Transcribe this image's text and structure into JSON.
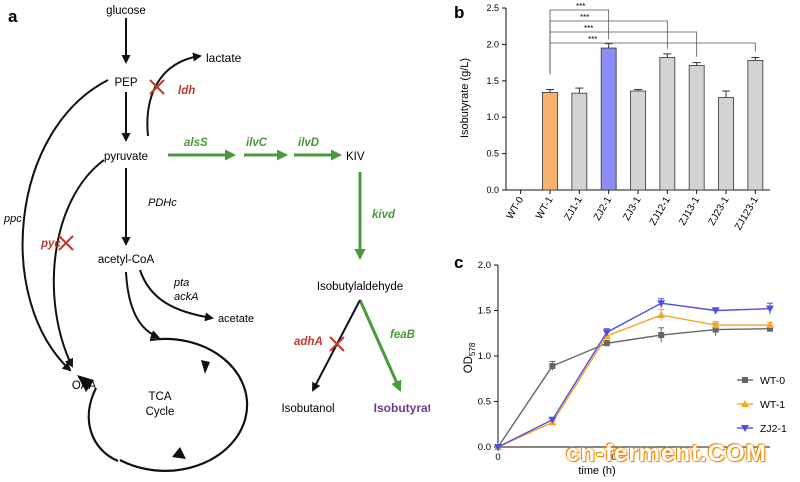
{
  "panel_a": {
    "label": "a",
    "nodes": {
      "glucose": "glucose",
      "pep": "PEP",
      "lactate": "lactate",
      "pyruvate": "pyruvate",
      "kiv": "KIV",
      "acetyl_coa": "acetyl-CoA",
      "acetate": "acetate",
      "oaa": "OAA",
      "tca": "TCA",
      "cycle": "Cycle",
      "isobutylaldehyde": "Isobutylaldehyde",
      "isobutanol": "Isobutanol",
      "isobutyrate": "Isobutyrate"
    },
    "enzymes": {
      "ldh": "ldh",
      "pyc": "pyc",
      "ppc": "ppc",
      "pdhc": "PDHc",
      "pta": "pta",
      "acka": "ackA",
      "alss": "alsS",
      "ilvc": "ilvC",
      "ilvd": "ilvD",
      "kivd": "kivd",
      "adha": "adhA",
      "feab": "feaB"
    },
    "colors": {
      "green": "#4a9a3c",
      "red": "#c0392b",
      "purple": "#6a3d8f"
    }
  },
  "chart_data": [
    {
      "type": "bar",
      "panel_label": "b",
      "categories": [
        "WT-0",
        "WT-1",
        "ZJ1-1",
        "ZJ2-1",
        "ZJ3-1",
        "ZJ12-1",
        "ZJ13-1",
        "ZJ23-1",
        "ZJ123-1"
      ],
      "values": [
        0,
        1.34,
        1.33,
        1.95,
        1.36,
        1.82,
        1.71,
        1.27,
        1.78
      ],
      "errors": [
        0,
        0.04,
        0.07,
        0.06,
        0.02,
        0.05,
        0.04,
        0.09,
        0.04
      ],
      "bar_colors": [
        "#f7b26b",
        "#f7b26b",
        "#d3d3d3",
        "#8b8cf5",
        "#d3d3d3",
        "#d3d3d3",
        "#d3d3d3",
        "#d3d3d3",
        "#d3d3d3"
      ],
      "ylabel": "Isobutyrate (g/L)",
      "ylim": [
        0,
        2.5
      ],
      "yticks": [
        "0.0",
        "0.5",
        "1.0",
        "1.5",
        "2.0",
        "2.5"
      ],
      "significance": [
        {
          "from": 1,
          "to": 3,
          "label": "***"
        },
        {
          "from": 1,
          "to": 5,
          "label": "***"
        },
        {
          "from": 1,
          "to": 6,
          "label": "***"
        },
        {
          "from": 1,
          "to": 8,
          "label": "***"
        }
      ]
    },
    {
      "type": "line",
      "panel_label": "c",
      "ylabel": "OD",
      "ylabel_sub": "578",
      "xlabel": "time (h)",
      "xlim": [
        0,
        48
      ],
      "ylim": [
        0,
        2.0
      ],
      "yticks": [
        "0.0",
        "0.5",
        "1.0",
        "1.5",
        "2.0"
      ],
      "xticks": [
        "0",
        "20"
      ],
      "series": [
        {
          "name": "WT-0",
          "color": "#666666",
          "marker": "square",
          "x": [
            0,
            12,
            24,
            36,
            48,
            60
          ],
          "y": [
            0.0,
            0.89,
            1.14,
            1.23,
            1.29,
            1.3
          ],
          "err": [
            0,
            0.05,
            0.03,
            0.08,
            0.07,
            0.03
          ]
        },
        {
          "name": "WT-1",
          "color": "#f5a623",
          "marker": "triangle-up",
          "x": [
            0,
            12,
            24,
            36,
            48,
            60
          ],
          "y": [
            0.0,
            0.27,
            1.22,
            1.45,
            1.34,
            1.34
          ],
          "err": [
            0,
            0.02,
            0.04,
            0.06,
            0.04,
            0.03
          ]
        },
        {
          "name": "ZJ2-1",
          "color": "#5050e0",
          "marker": "triangle-down",
          "x": [
            0,
            12,
            24,
            36,
            48,
            60
          ],
          "y": [
            0.0,
            0.3,
            1.26,
            1.58,
            1.5,
            1.52
          ],
          "err": [
            0,
            0.02,
            0.04,
            0.05,
            0.03,
            0.06
          ]
        }
      ]
    }
  ],
  "watermark": "cn-ferment.COM"
}
